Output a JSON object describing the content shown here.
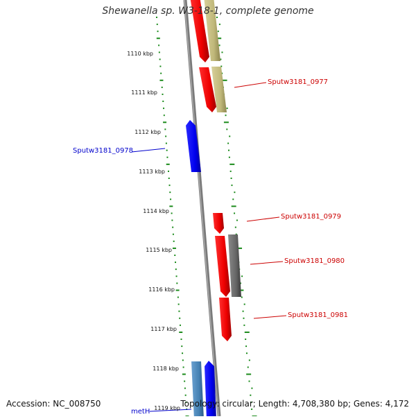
{
  "title": "Shewanella sp. W3-18-1, complete genome",
  "footer": {
    "accession": "Accession: NC_008750",
    "info": "Topology: circular; Length: 4,708,380 bp; Genes: 4,172"
  },
  "ticks": [
    {
      "label": "1110 kbp"
    },
    {
      "label": "1111 kbp"
    },
    {
      "label": "1112 kbp"
    },
    {
      "label": "1113 kbp"
    },
    {
      "label": "1114 kbp"
    },
    {
      "label": "1115 kbp"
    },
    {
      "label": "1116 kbp"
    },
    {
      "label": "1117 kbp"
    },
    {
      "label": "1118 kbp"
    },
    {
      "label": "1119 kbp"
    }
  ],
  "gene_labels": [
    {
      "label": "Sputw3181_0977",
      "color": "#cc0000"
    },
    {
      "label": "Sputw3181_0978",
      "color": "#0000cc"
    },
    {
      "label": "Sputw3181_0979",
      "color": "#cc0000"
    },
    {
      "label": "Sputw3181_0980",
      "color": "#cc0000"
    },
    {
      "label": "Sputw3181_0981",
      "color": "#cc0000"
    },
    {
      "label": "metH",
      "color": "#0000cc"
    }
  ],
  "colors": {
    "backbone": "#8c8c8c",
    "gc_ticks": "#1a8a1a",
    "cds_red": "#ff0000",
    "cds_blue": "#0000ff",
    "cds_khaki": "#c8c084",
    "cds_gray": "#707070",
    "cds_steel": "#4682b4"
  }
}
